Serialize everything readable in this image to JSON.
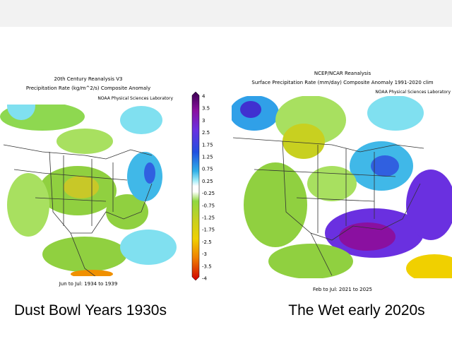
{
  "left_map": {
    "title": "20th Century Reanalysis V3",
    "subtitle": "Precipitation Rate (kg/m^2/s) Composite Anomaly",
    "credit": "NOAA Physical Sciences Laboratory",
    "period": "Jun to Jul: 1934 to 1939",
    "caption": "Dust Bowl Years 1930s"
  },
  "colorbar": {
    "labels": [
      "4",
      "3.5",
      "3",
      "2.5",
      "1.75",
      "1.25",
      "0.75",
      "0.25",
      "-0.25",
      "-0.75",
      "-1.25",
      "-1.75",
      "-2.5",
      "-3",
      "-3.5",
      "-4"
    ]
  },
  "right_map": {
    "title": "NCEP/NCAR Reanalysis",
    "subtitle": "Surface Precipitation Rate (mm/day) Composite Anomaly 1991-2020 clim",
    "credit": "NOAA Physical Sciences Laboratory",
    "period": "Feb to Jul: 2021 to 2025",
    "caption": "The Wet early 2020s"
  }
}
